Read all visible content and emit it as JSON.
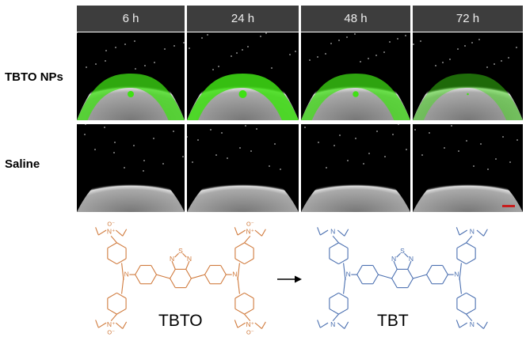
{
  "columns": [
    "6 h",
    "24 h",
    "48 h",
    "72 h"
  ],
  "rows": [
    {
      "label": "TBTO NPs",
      "signal": [
        0.8,
        1.0,
        0.75,
        0.25
      ]
    },
    {
      "label": "Saline",
      "signal": [
        0,
        0,
        0,
        0
      ]
    }
  ],
  "colors": {
    "signal": "#3fe014",
    "tbto": "#d07a3c",
    "tbt": "#4a6fb0",
    "scale_bar": "#c81e1e",
    "header_bg": "#3d3d3d"
  },
  "molecules": [
    {
      "name": "TBTO",
      "amine_label": "N⁺",
      "oxide_label": "O⁻",
      "n_label": "N",
      "s_label": "S"
    },
    {
      "name": "TBT",
      "amine_label": "N",
      "oxide_label": "",
      "n_label": "N",
      "s_label": "S"
    }
  ],
  "arrow_icon": "right-arrow"
}
